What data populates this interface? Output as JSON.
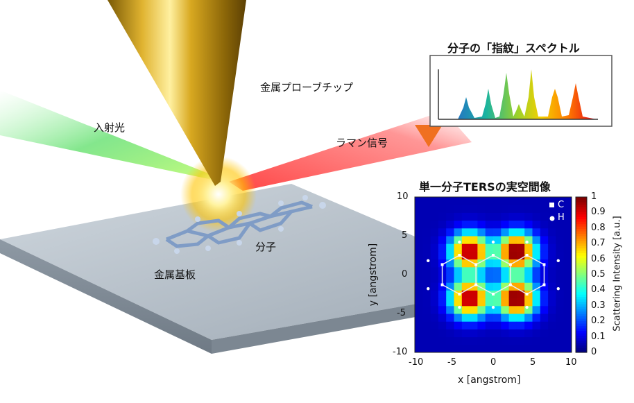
{
  "labels": {
    "incident_light": "入射光",
    "metal_tip": "金属プローブチップ",
    "raman_signal": "ラマン信号",
    "molecule": "分子",
    "metal_substrate": "金属基板",
    "spectrum_title": "分子の「指紋」スペクトル",
    "image_title": "単一分子TERSの実空間像"
  },
  "colors": {
    "incident": "#39d353",
    "raman": "#ff2a2a",
    "tip_gold": "#d4a017",
    "substrate": "#a9b4bf"
  },
  "chart_data": {
    "type": "heatmap",
    "title": "単一分子TERSの実空間像",
    "xlabel": "x [angstrom]",
    "ylabel": "y [angstrom]",
    "xlim": [
      -10,
      10
    ],
    "ylim": [
      -10,
      10
    ],
    "xticks": [
      "-10",
      "-5",
      "0",
      "5",
      "10"
    ],
    "yticks": [
      "10",
      "5",
      "0",
      "-5",
      "-10"
    ],
    "colorbar_label": "Scattering Intensity [a.u.]",
    "colorbar_ticks": [
      "1",
      "0.9",
      "0.8",
      "0.7",
      "0.6",
      "0.5",
      "0.4",
      "0.3",
      "0.2",
      "0.1",
      "0"
    ],
    "legend": [
      {
        "name": "C",
        "marker": "square"
      },
      {
        "name": "H",
        "marker": "circle"
      }
    ],
    "peaks": [
      {
        "x": -3,
        "y": 3,
        "intensity": 0.95
      },
      {
        "x": 3,
        "y": 3,
        "intensity": 1.0
      },
      {
        "x": -3,
        "y": -3,
        "intensity": 0.95
      },
      {
        "x": 3,
        "y": -3,
        "intensity": 1.0
      }
    ],
    "grid_resolution": 1
  }
}
